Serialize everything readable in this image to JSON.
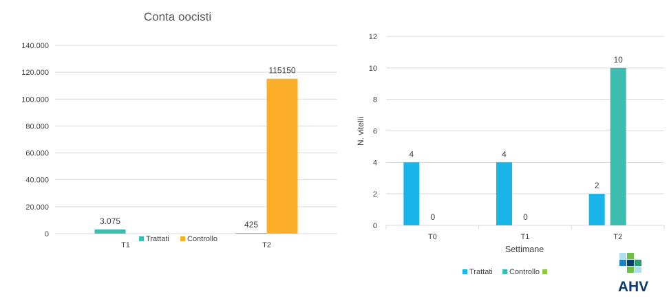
{
  "charts": {
    "left": {
      "title": "Conta oocisti",
      "y_ticks": [
        "0",
        "20.000",
        "40.000",
        "60.000",
        "80.000",
        "100.000",
        "120.000",
        "140.000"
      ],
      "legend": [
        "Trattati",
        "Controllo"
      ]
    },
    "right": {
      "y_ticks": [
        "0",
        "2",
        "4",
        "6",
        "8",
        "10",
        "12"
      ],
      "ylabel": "N. vitelli",
      "xlabel": "Settimane",
      "legend": [
        "Trattati",
        "Controllo",
        ""
      ]
    }
  },
  "chart_data": [
    {
      "type": "bar",
      "title": "Conta oocisti",
      "categories": [
        "T1",
        "T2"
      ],
      "series": [
        {
          "name": "Trattati",
          "values": [
            3075,
            425
          ],
          "labels": [
            "3.075",
            "425"
          ],
          "color": "#3dbdb0"
        },
        {
          "name": "Controllo",
          "values": [
            null,
            115150
          ],
          "labels": [
            "",
            "115150"
          ],
          "color": "#fbae2a"
        }
      ],
      "ylim": [
        0,
        140000
      ],
      "yticks": [
        0,
        20000,
        40000,
        60000,
        80000,
        100000,
        120000,
        140000
      ],
      "grid": true,
      "legend_position": "bottom"
    },
    {
      "type": "bar",
      "categories": [
        "T0",
        "T1",
        "T2"
      ],
      "series": [
        {
          "name": "Trattati",
          "values": [
            4,
            4,
            2
          ],
          "labels": [
            "4",
            "4",
            "2"
          ],
          "color": "#19b4e8"
        },
        {
          "name": "Controllo",
          "values": [
            0,
            0,
            10
          ],
          "labels": [
            "0",
            "0",
            "10"
          ],
          "color": "#3dbdb0"
        },
        {
          "name": "",
          "values": [
            null,
            null,
            null
          ],
          "labels": [
            "",
            "",
            ""
          ],
          "color": "#8dc63f"
        }
      ],
      "xlabel": "Settimane",
      "ylabel": "N. vitelli",
      "ylim": [
        0,
        12
      ],
      "yticks": [
        0,
        2,
        4,
        6,
        8,
        10,
        12
      ],
      "grid": true,
      "legend_position": "bottom"
    }
  ],
  "logo": {
    "text": "AHV",
    "colors": [
      "#2e9b6f",
      "#6cc04a",
      "#1b82c5",
      "#0c3c6e"
    ]
  }
}
